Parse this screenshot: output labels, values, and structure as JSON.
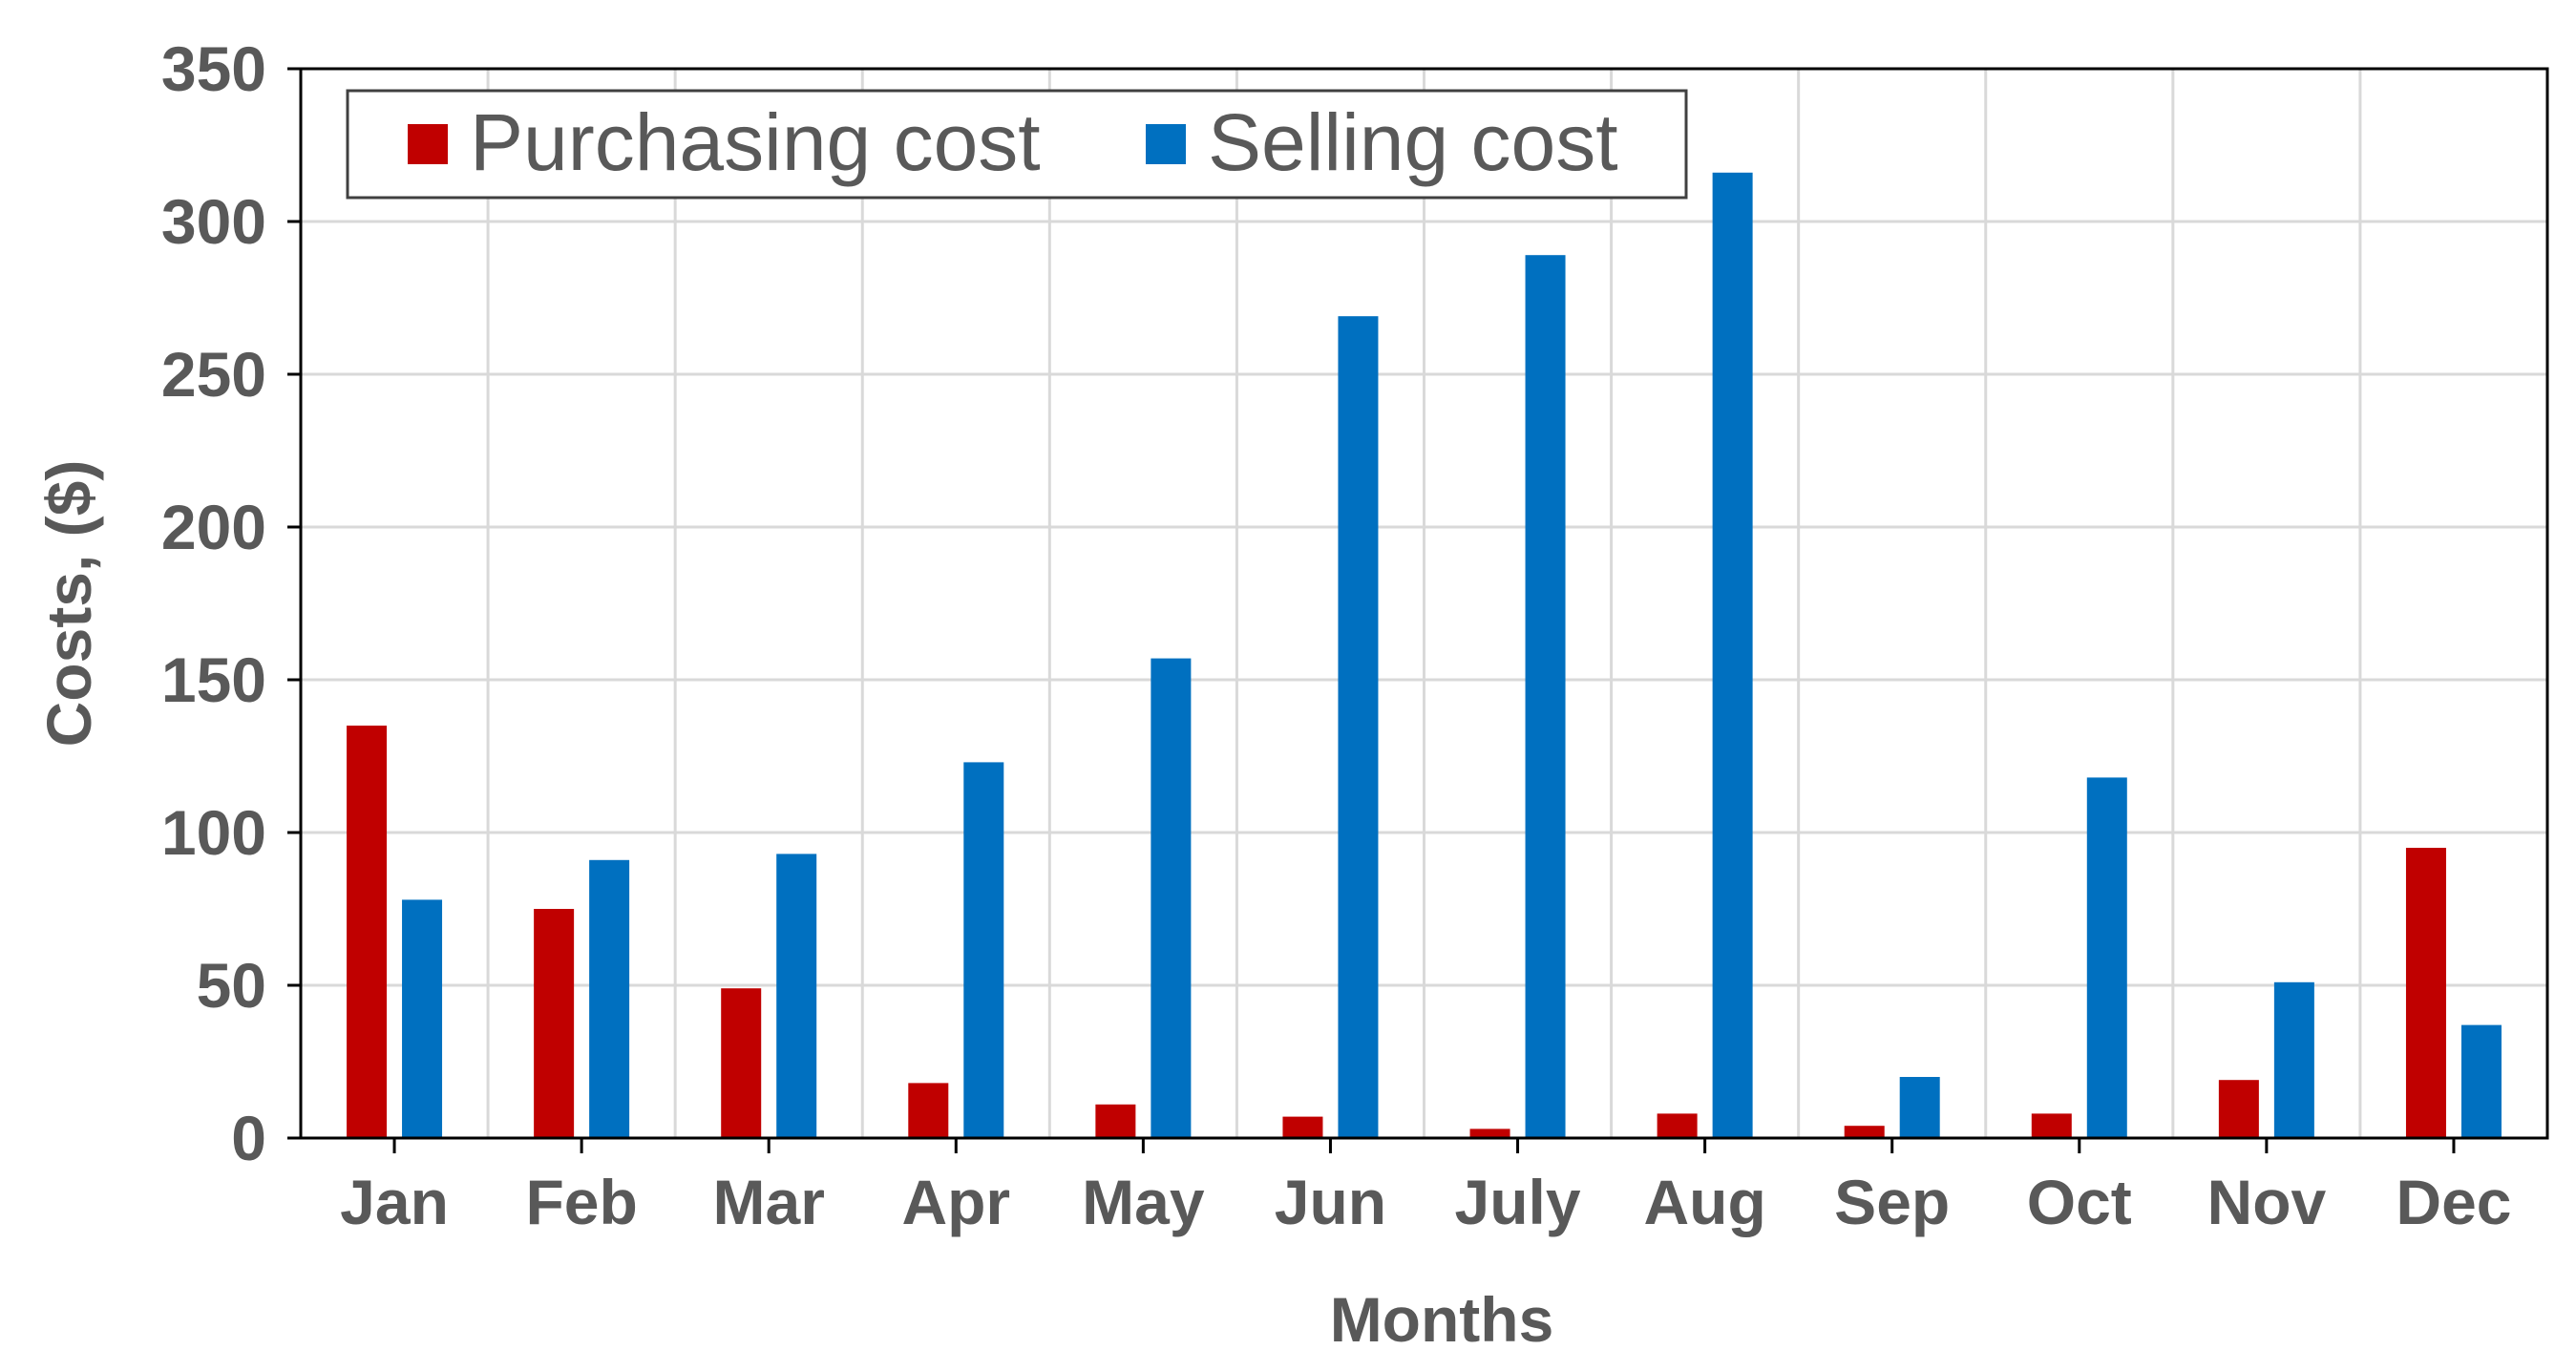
{
  "chart_data": {
    "type": "bar",
    "title": "",
    "xlabel": "Months",
    "ylabel": "Costs, ($)",
    "ylim": [
      0,
      350
    ],
    "yticks": [
      0,
      50,
      100,
      150,
      200,
      250,
      300,
      350
    ],
    "grid": true,
    "legend_position": "top-left",
    "categories": [
      "Jan",
      "Feb",
      "Mar",
      "Apr",
      "May",
      "Jun",
      "July",
      "Aug",
      "Sep",
      "Oct",
      "Nov",
      "Dec"
    ],
    "series": [
      {
        "name": "Purchasing cost",
        "color": "#C00000",
        "values": [
          135,
          75,
          49,
          18,
          11,
          7,
          3,
          8,
          4,
          8,
          19,
          95
        ]
      },
      {
        "name": "Selling cost",
        "color": "#0070C0",
        "values": [
          78,
          91,
          93,
          123,
          157,
          269,
          289,
          316,
          20,
          118,
          51,
          37
        ]
      }
    ]
  }
}
